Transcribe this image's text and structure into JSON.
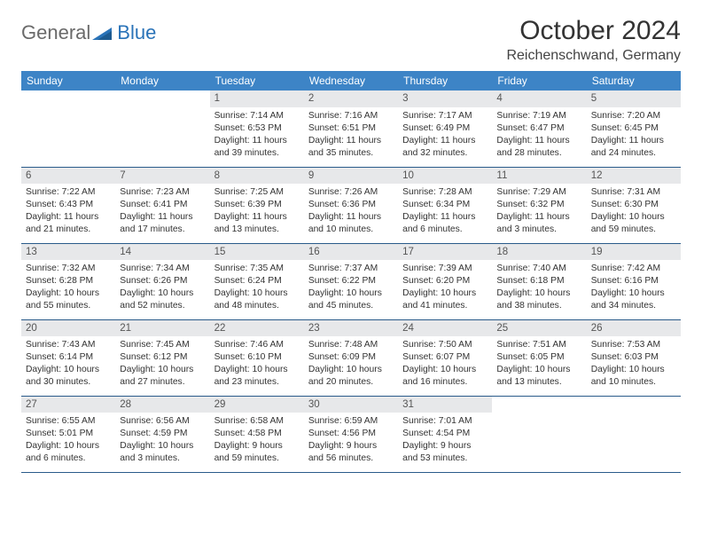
{
  "logo": {
    "general": "General",
    "blue": "Blue"
  },
  "title": "October 2024",
  "location": "Reichenschwand, Germany",
  "styling": {
    "page_bg": "#ffffff",
    "header_bg": "#3d84c6",
    "header_text": "#ffffff",
    "daynum_bg": "#e7e8ea",
    "daynum_text": "#555555",
    "body_text": "#333333",
    "row_border": "#2a5b8a",
    "logo_gray": "#6a6a6a",
    "logo_blue": "#2a73b8",
    "title_fontsize": 30,
    "location_fontsize": 16,
    "header_fontsize": 12,
    "daynum_fontsize": 11.5,
    "body_fontsize": 10.3
  },
  "day_labels": [
    "Sunday",
    "Monday",
    "Tuesday",
    "Wednesday",
    "Thursday",
    "Friday",
    "Saturday"
  ],
  "weeks": [
    [
      null,
      null,
      {
        "n": "1",
        "r": "7:14 AM",
        "s": "6:53 PM",
        "dh": "11",
        "dm": "39"
      },
      {
        "n": "2",
        "r": "7:16 AM",
        "s": "6:51 PM",
        "dh": "11",
        "dm": "35"
      },
      {
        "n": "3",
        "r": "7:17 AM",
        "s": "6:49 PM",
        "dh": "11",
        "dm": "32"
      },
      {
        "n": "4",
        "r": "7:19 AM",
        "s": "6:47 PM",
        "dh": "11",
        "dm": "28"
      },
      {
        "n": "5",
        "r": "7:20 AM",
        "s": "6:45 PM",
        "dh": "11",
        "dm": "24"
      }
    ],
    [
      {
        "n": "6",
        "r": "7:22 AM",
        "s": "6:43 PM",
        "dh": "11",
        "dm": "21"
      },
      {
        "n": "7",
        "r": "7:23 AM",
        "s": "6:41 PM",
        "dh": "11",
        "dm": "17"
      },
      {
        "n": "8",
        "r": "7:25 AM",
        "s": "6:39 PM",
        "dh": "11",
        "dm": "13"
      },
      {
        "n": "9",
        "r": "7:26 AM",
        "s": "6:36 PM",
        "dh": "11",
        "dm": "10"
      },
      {
        "n": "10",
        "r": "7:28 AM",
        "s": "6:34 PM",
        "dh": "11",
        "dm": "6"
      },
      {
        "n": "11",
        "r": "7:29 AM",
        "s": "6:32 PM",
        "dh": "11",
        "dm": "3"
      },
      {
        "n": "12",
        "r": "7:31 AM",
        "s": "6:30 PM",
        "dh": "10",
        "dm": "59"
      }
    ],
    [
      {
        "n": "13",
        "r": "7:32 AM",
        "s": "6:28 PM",
        "dh": "10",
        "dm": "55"
      },
      {
        "n": "14",
        "r": "7:34 AM",
        "s": "6:26 PM",
        "dh": "10",
        "dm": "52"
      },
      {
        "n": "15",
        "r": "7:35 AM",
        "s": "6:24 PM",
        "dh": "10",
        "dm": "48"
      },
      {
        "n": "16",
        "r": "7:37 AM",
        "s": "6:22 PM",
        "dh": "10",
        "dm": "45"
      },
      {
        "n": "17",
        "r": "7:39 AM",
        "s": "6:20 PM",
        "dh": "10",
        "dm": "41"
      },
      {
        "n": "18",
        "r": "7:40 AM",
        "s": "6:18 PM",
        "dh": "10",
        "dm": "38"
      },
      {
        "n": "19",
        "r": "7:42 AM",
        "s": "6:16 PM",
        "dh": "10",
        "dm": "34"
      }
    ],
    [
      {
        "n": "20",
        "r": "7:43 AM",
        "s": "6:14 PM",
        "dh": "10",
        "dm": "30"
      },
      {
        "n": "21",
        "r": "7:45 AM",
        "s": "6:12 PM",
        "dh": "10",
        "dm": "27"
      },
      {
        "n": "22",
        "r": "7:46 AM",
        "s": "6:10 PM",
        "dh": "10",
        "dm": "23"
      },
      {
        "n": "23",
        "r": "7:48 AM",
        "s": "6:09 PM",
        "dh": "10",
        "dm": "20"
      },
      {
        "n": "24",
        "r": "7:50 AM",
        "s": "6:07 PM",
        "dh": "10",
        "dm": "16"
      },
      {
        "n": "25",
        "r": "7:51 AM",
        "s": "6:05 PM",
        "dh": "10",
        "dm": "13"
      },
      {
        "n": "26",
        "r": "7:53 AM",
        "s": "6:03 PM",
        "dh": "10",
        "dm": "10"
      }
    ],
    [
      {
        "n": "27",
        "r": "6:55 AM",
        "s": "5:01 PM",
        "dh": "10",
        "dm": "6"
      },
      {
        "n": "28",
        "r": "6:56 AM",
        "s": "4:59 PM",
        "dh": "10",
        "dm": "3"
      },
      {
        "n": "29",
        "r": "6:58 AM",
        "s": "4:58 PM",
        "dh": "9",
        "dm": "59"
      },
      {
        "n": "30",
        "r": "6:59 AM",
        "s": "4:56 PM",
        "dh": "9",
        "dm": "56"
      },
      {
        "n": "31",
        "r": "7:01 AM",
        "s": "4:54 PM",
        "dh": "9",
        "dm": "53"
      },
      null,
      null
    ]
  ]
}
